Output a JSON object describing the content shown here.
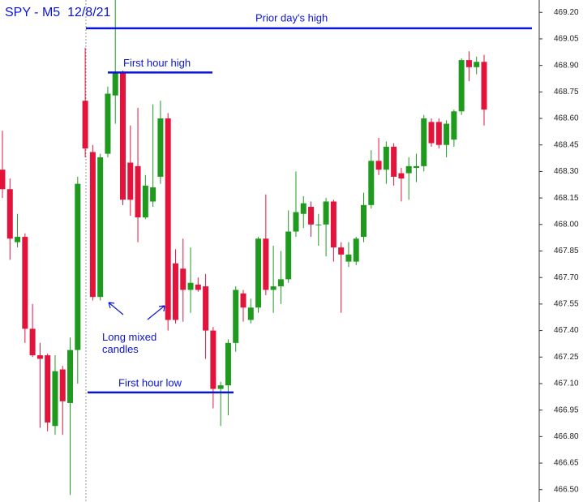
{
  "chart_data": {
    "type": "candlestick",
    "title": "SPY - M5  12/8/21",
    "open": [
      468.31,
      468.2,
      467.9,
      467.93,
      467.41,
      467.26,
      467.26,
      466.86,
      467.18,
      466.99,
      467.29,
      468.7,
      468.41,
      467.59,
      468.4,
      468.73,
      468.86,
      468.35,
      468.33,
      468.04,
      468.13,
      468.27,
      468.6,
      467.78,
      467.75,
      467.63,
      467.66,
      467.65,
      467.4,
      467.07,
      467.09,
      467.33,
      467.61,
      467.46,
      467.53,
      467.92,
      467.63,
      467.65,
      467.69,
      467.96,
      468.06,
      468.1,
      468.0,
      468.0,
      468.13,
      467.87,
      467.79,
      467.79,
      467.93,
      468.11,
      468.36,
      468.31,
      468.44,
      468.29,
      468.29,
      468.32,
      468.33,
      468.58,
      468.58,
      468.45,
      468.48,
      468.64,
      468.93,
      468.89,
      468.92
    ],
    "high": [
      468.53,
      468.26,
      468.06,
      467.95,
      467.55,
      467.33,
      467.27,
      467.26,
      467.2,
      467.36,
      468.27,
      469.0,
      468.45,
      468.4,
      468.78,
      469.27,
      468.87,
      468.56,
      468.66,
      468.28,
      468.68,
      468.7,
      468.63,
      467.86,
      467.92,
      467.87,
      467.7,
      467.72,
      467.42,
      467.11,
      467.35,
      467.65,
      467.63,
      467.58,
      467.93,
      468.17,
      467.88,
      467.85,
      468.08,
      468.3,
      468.16,
      468.13,
      468.06,
      468.15,
      468.14,
      467.9,
      467.9,
      467.93,
      468.18,
      468.42,
      468.49,
      468.47,
      468.46,
      468.32,
      468.38,
      468.4,
      468.62,
      468.6,
      468.6,
      468.59,
      468.65,
      468.94,
      468.98,
      468.95,
      468.96
    ],
    "low": [
      468.15,
      467.8,
      467.87,
      467.33,
      467.25,
      466.85,
      466.83,
      466.81,
      466.81,
      466.47,
      467.1,
      468.38,
      467.57,
      467.57,
      468.38,
      468.57,
      468.11,
      468.05,
      467.9,
      468.03,
      468.1,
      468.23,
      467.4,
      467.44,
      467.45,
      467.5,
      467.62,
      467.24,
      466.96,
      466.86,
      466.92,
      467.28,
      467.45,
      467.44,
      467.5,
      467.6,
      467.5,
      467.55,
      467.67,
      467.93,
      467.98,
      467.93,
      467.88,
      467.82,
      467.79,
      467.5,
      467.76,
      467.77,
      467.9,
      468.09,
      468.28,
      468.23,
      468.22,
      468.13,
      468.14,
      468.24,
      468.3,
      468.44,
      468.43,
      468.38,
      468.44,
      468.62,
      468.81,
      468.85,
      468.56
    ],
    "close": [
      468.2,
      467.92,
      467.93,
      467.41,
      467.26,
      467.24,
      466.88,
      467.17,
      467.0,
      467.29,
      468.23,
      468.43,
      467.59,
      468.38,
      468.74,
      468.86,
      468.14,
      468.14,
      468.04,
      468.22,
      468.21,
      468.6,
      467.46,
      467.46,
      467.63,
      467.67,
      467.63,
      467.4,
      467.07,
      467.09,
      467.33,
      467.63,
      467.53,
      467.53,
      467.92,
      467.63,
      467.65,
      467.69,
      467.96,
      468.07,
      468.12,
      468.0,
      468.0,
      468.13,
      467.87,
      467.83,
      467.83,
      467.92,
      468.11,
      468.36,
      468.31,
      468.44,
      468.27,
      468.26,
      468.33,
      468.33,
      468.6,
      468.46,
      468.45,
      468.57,
      468.64,
      468.93,
      468.89,
      468.92,
      468.65
    ],
    "up_color": "#1f9a1f",
    "down_color": "#e3143c",
    "ylim": [
      466.43,
      469.27
    ],
    "yticks": [
      {
        "value": 469.2,
        "label": "469.20"
      },
      469.05,
      {
        "value": 468.9,
        "label": "468.90"
      },
      468.75,
      {
        "value": 468.6,
        "label": "468.60"
      },
      468.45,
      {
        "value": 468.3,
        "label": "468.30"
      },
      468.15,
      {
        "value": 468.0,
        "label": "468.00"
      },
      467.85,
      {
        "value": 467.7,
        "label": "467.70"
      },
      467.55,
      {
        "value": 467.4,
        "label": "467.40"
      },
      467.25,
      {
        "value": 467.1,
        "label": "467.10"
      },
      466.95,
      {
        "value": 466.8,
        "label": "466.80"
      },
      466.65,
      {
        "value": 466.5,
        "label": "466.50"
      }
    ],
    "annotations": [
      {
        "text": "Prior day's high",
        "value": 469.11
      },
      {
        "text": "First hour high",
        "value": 468.86
      },
      {
        "text": "First hour low",
        "value": 467.05
      }
    ],
    "callout": "Long mixed candles",
    "annotation_color": "#0a14d8"
  }
}
